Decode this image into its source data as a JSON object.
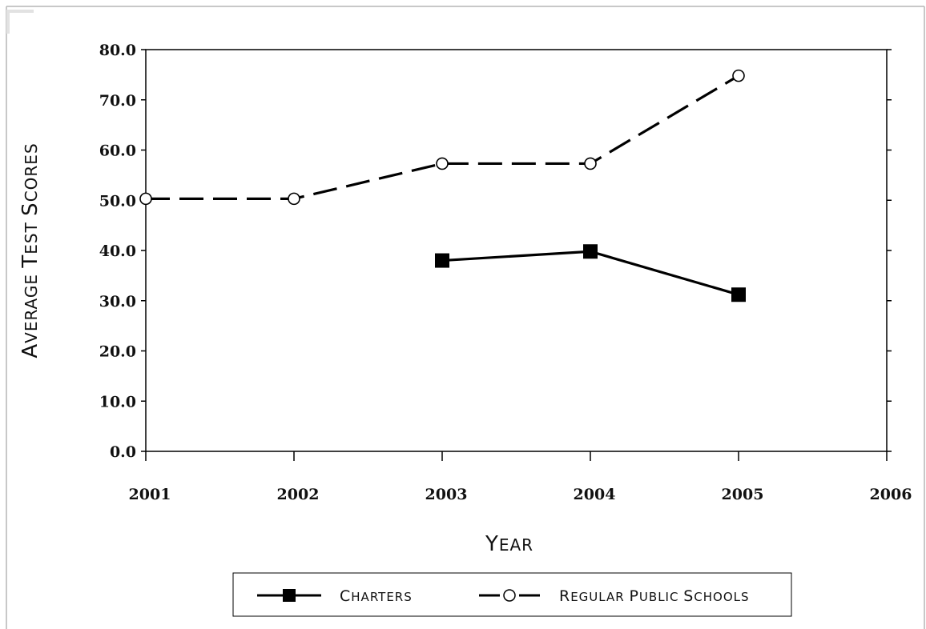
{
  "chart_data": {
    "type": "line",
    "x": [
      2001,
      2002,
      2003,
      2004,
      2005,
      2006
    ],
    "xlabel": "Year",
    "ylabel": "Average Test Scores",
    "ylim": [
      0,
      80
    ],
    "xlim": [
      2001,
      2006
    ],
    "y_ticks": [
      "0.0",
      "10.0",
      "20.0",
      "30.0",
      "40.0",
      "50.0",
      "60.0",
      "70.0",
      "80.0"
    ],
    "x_ticks": [
      "2001",
      "2002",
      "2003",
      "2004",
      "2005",
      "2006"
    ],
    "grid": false,
    "legend_position": "bottom",
    "series": [
      {
        "name": "Charters",
        "x": [
          2003,
          2004,
          2005
        ],
        "values": [
          38.0,
          39.8,
          31.2
        ],
        "line_style": "solid",
        "marker": "filled-square",
        "color": "#000000"
      },
      {
        "name": "Regular Public Schools",
        "x": [
          2001,
          2002,
          2003,
          2004,
          2005
        ],
        "values": [
          50.3,
          50.3,
          57.3,
          57.3,
          74.8
        ],
        "line_style": "dashed",
        "marker": "open-circle",
        "color": "#000000"
      }
    ]
  }
}
